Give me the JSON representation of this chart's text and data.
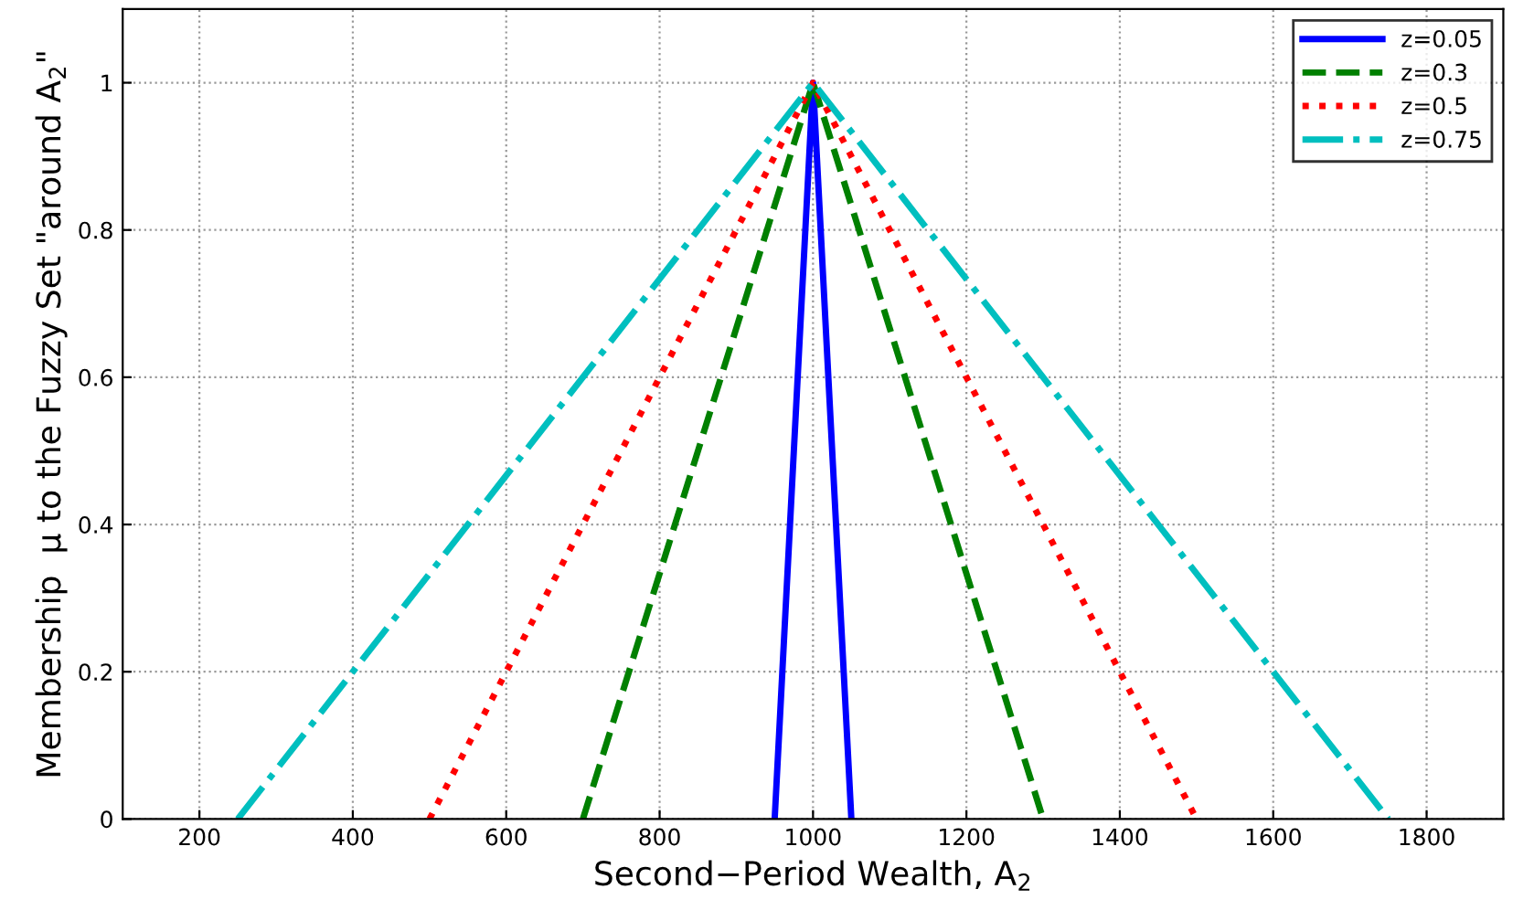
{
  "chart_data": {
    "type": "line",
    "xlabel": "Second−Period Wealth, A$_{2}$",
    "ylabel": "Membership  μ to the Fuzzy Set \"around A$_{2}$\"",
    "series": [
      {
        "name": "z=0.05",
        "color": "#0000ff",
        "line_style": "solid",
        "x": [
          950,
          1000,
          1050
        ],
        "values": [
          0,
          1,
          0
        ]
      },
      {
        "name": "z=0.3",
        "color": "#008000",
        "line_style": "dashed",
        "x": [
          700,
          1000,
          1300
        ],
        "values": [
          0,
          1,
          0
        ]
      },
      {
        "name": "z=0.5",
        "color": "#ff0000",
        "line_style": "dotted",
        "x": [
          500,
          1000,
          1500
        ],
        "values": [
          0,
          1,
          0
        ]
      },
      {
        "name": "z=0.75",
        "color": "#00bfbf",
        "line_style": "dashdot",
        "x": [
          250,
          1000,
          1750
        ],
        "values": [
          0,
          1,
          0
        ]
      }
    ],
    "xlim": [
      100,
      1900
    ],
    "xticks": [
      200,
      400,
      600,
      800,
      1000,
      1200,
      1400,
      1600,
      1800
    ],
    "ylim": [
      0,
      1.1
    ],
    "yticks": [
      0,
      0.2,
      0.4,
      0.6,
      0.8,
      1
    ],
    "grid": true,
    "legend": "top right",
    "marker": "none"
  }
}
